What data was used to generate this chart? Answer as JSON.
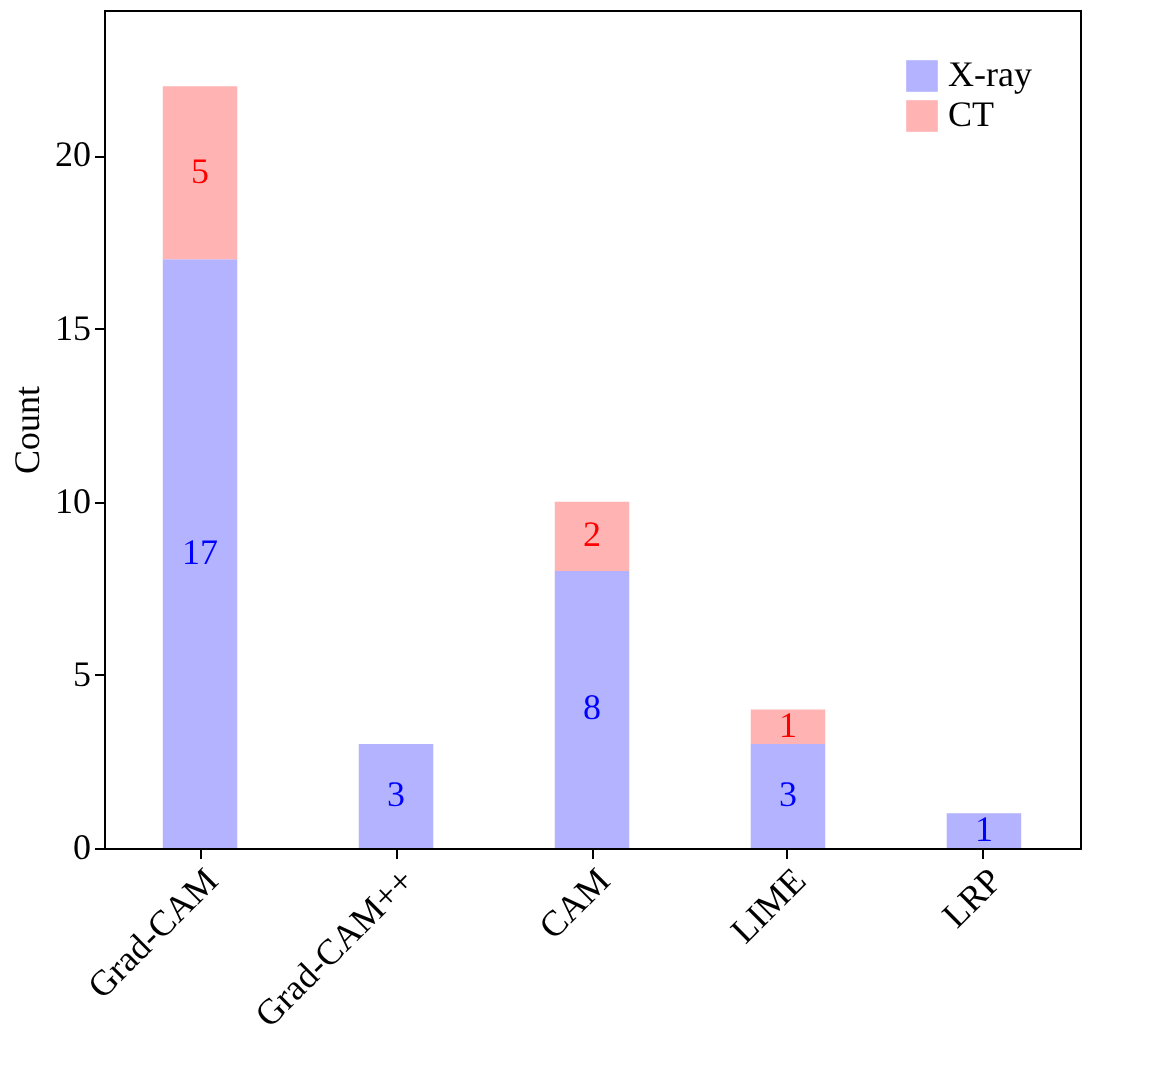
{
  "chart_data": {
    "type": "bar",
    "stacked": true,
    "ylabel": "Count",
    "categories": [
      "Grad-CAM",
      "Grad-CAM++",
      "CAM",
      "LIME",
      "LRP"
    ],
    "series": [
      {
        "name": "X-ray",
        "color": "#b3b3ff",
        "values": [
          17,
          3,
          8,
          3,
          1
        ]
      },
      {
        "name": "CT",
        "color": "#ffb3b3",
        "values": [
          5,
          null,
          2,
          1,
          null
        ]
      }
    ],
    "ylim": [
      0,
      24.2
    ],
    "yticks": [
      0,
      5,
      10,
      15,
      20
    ],
    "grid": false,
    "legend": "top right",
    "data_labels": true
  }
}
